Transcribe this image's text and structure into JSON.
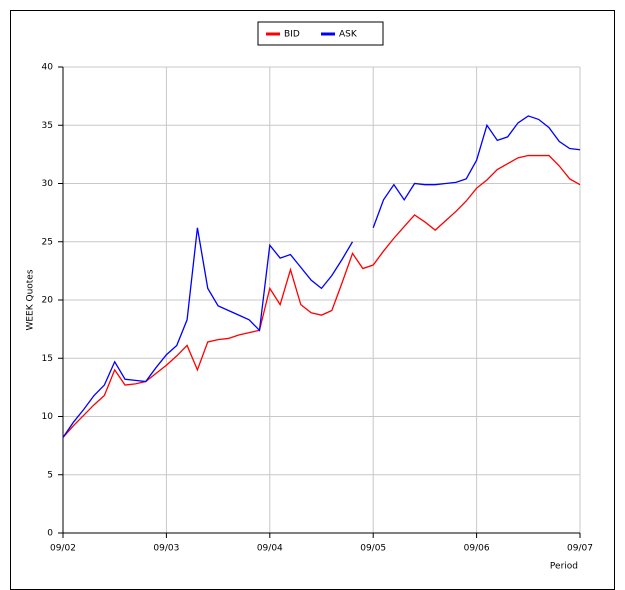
{
  "chart_data": {
    "type": "line",
    "ylabel": "WEEK Quotes",
    "xlabel": "Period",
    "x": [
      0,
      0.1,
      0.2,
      0.3,
      0.4,
      0.5,
      0.6,
      0.7,
      0.8,
      0.9,
      1.0,
      1.1,
      1.2,
      1.3,
      1.4,
      1.5,
      1.6,
      1.7,
      1.8,
      1.9,
      2.0,
      2.1,
      2.2,
      2.3,
      2.4,
      2.5,
      2.6,
      2.7,
      2.8,
      2.9,
      3.0,
      3.1,
      3.2,
      3.3,
      3.4,
      3.5,
      3.6,
      3.7,
      3.8,
      3.9,
      4.0,
      4.1,
      4.2,
      4.3,
      4.4,
      4.5,
      4.6,
      4.7,
      4.8,
      4.9,
      5.0
    ],
    "series": [
      {
        "name": "BID",
        "color": "#ff0000",
        "values": [
          8.2,
          9.2,
          10.1,
          11.0,
          11.8,
          14.0,
          12.7,
          12.8,
          13.0,
          13.7,
          14.4,
          15.2,
          16.1,
          14.0,
          16.4,
          16.6,
          16.7,
          17.0,
          17.2,
          17.4,
          21.0,
          19.6,
          22.6,
          19.6,
          18.9,
          18.7,
          19.1,
          21.5,
          24.0,
          22.7,
          23.0,
          24.2,
          25.3,
          26.3,
          27.3,
          26.7,
          26.0,
          26.8,
          27.6,
          28.5,
          29.6,
          30.3,
          31.2,
          31.7,
          32.2,
          32.4,
          32.4,
          32.4,
          31.5,
          30.4,
          29.9
        ]
      },
      {
        "name": "ASK",
        "color": "#0000ff",
        "values": [
          8.2,
          9.5,
          10.6,
          11.8,
          12.7,
          14.7,
          13.2,
          13.1,
          13.0,
          14.2,
          15.3,
          16.1,
          18.3,
          26.2,
          21.0,
          19.5,
          19.1,
          18.7,
          18.3,
          17.4,
          24.7,
          23.6,
          23.9,
          22.8,
          21.7,
          21.0,
          22.1,
          23.5,
          25.0,
          null,
          26.2,
          28.6,
          29.9,
          28.6,
          30.0,
          29.9,
          29.9,
          30.0,
          30.1,
          30.4,
          32.0,
          35.0,
          33.7,
          34.0,
          35.2,
          35.8,
          35.5,
          34.8,
          33.6,
          33.0,
          32.9
        ]
      }
    ],
    "xlim": [
      0,
      5
    ],
    "xticks": [
      {
        "value": 0,
        "label": "09/02"
      },
      {
        "value": 1,
        "label": "09/03"
      },
      {
        "value": 2,
        "label": "09/04"
      },
      {
        "value": 3,
        "label": "09/05"
      },
      {
        "value": 4,
        "label": "09/06"
      },
      {
        "value": 5,
        "label": "09/07"
      }
    ],
    "ylim": [
      0,
      40
    ],
    "yticks": [
      0,
      5,
      10,
      15,
      20,
      25,
      30,
      35,
      40
    ],
    "grid": true,
    "legend": "top"
  }
}
